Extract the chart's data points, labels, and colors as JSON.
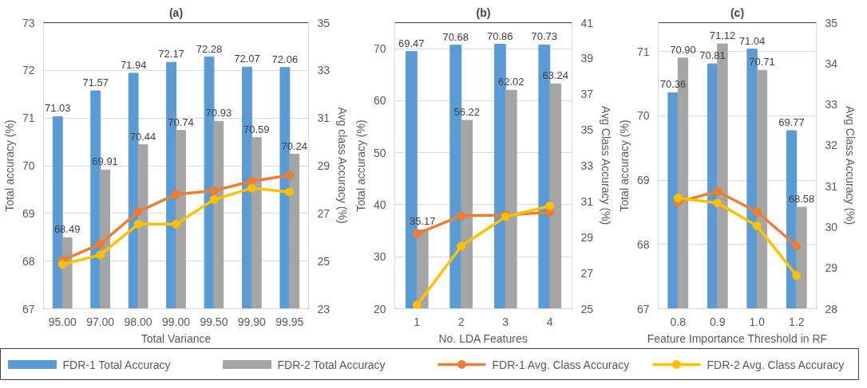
{
  "chart_data": [
    {
      "type": "bar",
      "title": "(a)",
      "xlabel": "Total Variance",
      "ylabel": "Total accuracy (%)",
      "y2label": "Avg class Accuracy (%)",
      "categories": [
        "95.00",
        "97.00",
        "98.00",
        "99.00",
        "99.50",
        "99.90",
        "99.95"
      ],
      "ylim": [
        67,
        73
      ],
      "yticks": [
        67,
        68,
        69,
        70,
        71,
        72,
        73
      ],
      "y2lim": [
        23,
        35
      ],
      "y2ticks": [
        23,
        25,
        27,
        29,
        31,
        33,
        35
      ],
      "grid": "y",
      "legend": "bottom",
      "marker": "circle",
      "series": [
        {
          "name": "FDR-1 Total Accuracy",
          "color": "#5b9bd5",
          "values": [
            71.03,
            71.57,
            71.94,
            72.17,
            72.28,
            72.07,
            72.06
          ],
          "value_labels": [
            "71.03",
            "71.57",
            "71.94",
            "72.17",
            "72.28",
            "72.07",
            "72.06"
          ]
        },
        {
          "name": "FDR-2 Total Accuracy",
          "color": "#a5a5a5",
          "values": [
            68.49,
            69.91,
            70.44,
            70.74,
            70.93,
            70.59,
            70.24
          ],
          "value_labels": [
            "68.49",
            "69.91",
            "70.44",
            "70.74",
            "70.93",
            "70.59",
            "70.24"
          ]
        },
        {
          "name": "FDR-1 Avg. Class Accuracy",
          "type": "line",
          "axis": "y2",
          "color": "#ed7d31",
          "values": [
            25.03,
            25.72,
            27.07,
            27.8,
            27.95,
            28.35,
            28.6
          ]
        },
        {
          "name": "FDR-2 Avg. Class Accuracy",
          "type": "line",
          "axis": "y2",
          "color": "#ffc000",
          "values": [
            24.86,
            25.26,
            26.55,
            26.55,
            27.58,
            28.06,
            27.9
          ]
        }
      ]
    },
    {
      "type": "bar",
      "title": "(b)",
      "xlabel": "No. LDA Features",
      "ylabel": "Total accuracy (%)",
      "y2label": "Avg Class Accuracy (%)",
      "categories": [
        "1",
        "2",
        "3",
        "4"
      ],
      "ylim": [
        20,
        75
      ],
      "yticks": [
        20,
        30,
        40,
        50,
        60,
        70
      ],
      "y2lim": [
        25,
        41
      ],
      "y2ticks": [
        25,
        27,
        29,
        31,
        33,
        35,
        37,
        39,
        41
      ],
      "grid": "y",
      "marker": "circle",
      "series": [
        {
          "color": "#5b9bd5",
          "values": [
            69.47,
            70.68,
            70.86,
            70.73
          ],
          "value_labels": [
            "69.47",
            "70.68",
            "70.86",
            "70.73"
          ]
        },
        {
          "color": "#a5a5a5",
          "values": [
            35.17,
            56.22,
            62.02,
            63.24
          ],
          "value_labels": [
            "35.17",
            "56.22",
            "62.02",
            "63.24"
          ]
        },
        {
          "type": "line",
          "axis": "y2",
          "color": "#ed7d31",
          "values": [
            29.2,
            30.2,
            30.24,
            30.4
          ]
        },
        {
          "type": "line",
          "axis": "y2",
          "color": "#ffc000",
          "values": [
            25.2,
            28.5,
            30.15,
            30.75
          ]
        }
      ]
    },
    {
      "type": "bar",
      "title": "(c)",
      "xlabel": "Feature Importance Threshold in RF",
      "ylabel": "Total accuracy (%)",
      "y2label": "Avg Class Accuracy (%)",
      "categories": [
        "0.8",
        "0.9",
        "1.0",
        "1.2"
      ],
      "ylim": [
        67,
        71.45
      ],
      "yticks": [
        67,
        68,
        69,
        70,
        71
      ],
      "y2lim": [
        28,
        35
      ],
      "y2ticks": [
        28,
        29,
        30,
        31,
        32,
        33,
        34,
        35
      ],
      "grid": "y",
      "marker": "circle",
      "series": [
        {
          "color": "#5b9bd5",
          "values": [
            70.36,
            70.81,
            71.04,
            69.77
          ],
          "value_labels": [
            "70.36",
            "70.81",
            "71.04",
            "69.77"
          ]
        },
        {
          "color": "#a5a5a5",
          "values": [
            70.9,
            71.12,
            70.71,
            68.58
          ],
          "value_labels": [
            "70.90",
            "71.12",
            "70.71",
            "68.58"
          ]
        },
        {
          "type": "line",
          "axis": "y2",
          "color": "#ed7d31",
          "values": [
            30.61,
            30.87,
            30.37,
            29.54
          ]
        },
        {
          "type": "line",
          "axis": "y2",
          "color": "#ffc000",
          "values": [
            30.71,
            30.59,
            30.03,
            28.81
          ]
        }
      ]
    }
  ]
}
